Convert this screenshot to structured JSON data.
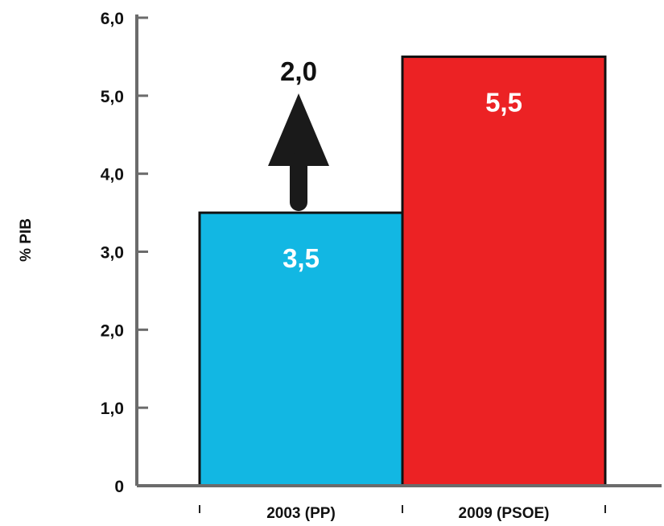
{
  "chart_data": {
    "type": "bar",
    "ylabel": "% PIB",
    "categories": [
      "2003 (PP)",
      "2009 (PSOE)"
    ],
    "values": [
      3.5,
      5.5
    ],
    "value_labels": [
      "3,5",
      "5,5"
    ],
    "colors": [
      "#12b7e3",
      "#ec2224"
    ],
    "ylim": [
      0,
      6
    ],
    "yticks": [
      0,
      1,
      2,
      3,
      4,
      5,
      6
    ],
    "ytick_labels": [
      "0",
      "1,0",
      "2,0",
      "3,0",
      "4,0",
      "5,0",
      "6,0"
    ],
    "annotation": {
      "text": "2,0",
      "value": 2.0,
      "arrow": "up",
      "icon": "arrow-up-icon",
      "color": "#1a1a1a"
    },
    "axis_color": "#6b6b6b",
    "grid": false
  }
}
